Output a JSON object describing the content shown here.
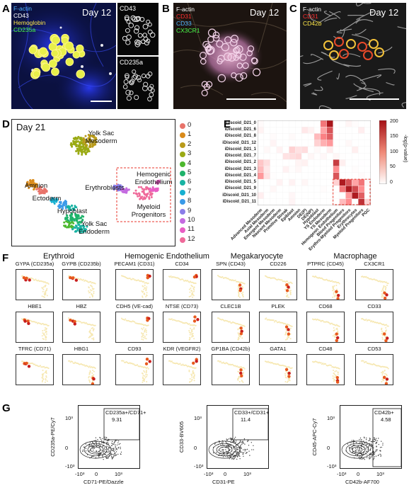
{
  "panel_letters": [
    "A",
    "B",
    "C",
    "D",
    "E",
    "F",
    "G"
  ],
  "panelA": {
    "legend": [
      {
        "text": "F-actin",
        "color": "#4fb3ff"
      },
      {
        "text": "CD43",
        "color": "#ffffff"
      },
      {
        "text": "Hemoglobin",
        "color": "#ffe84a"
      },
      {
        "text": "CD235a",
        "color": "#4cff4c"
      }
    ],
    "day": "Day 12",
    "inset_top": "CD43",
    "inset_bottom": "CD235a"
  },
  "panelB": {
    "legend": [
      {
        "text": "F-actin",
        "color": "#ffffff"
      },
      {
        "text": "CD31",
        "color": "#ff3030"
      },
      {
        "text": "CD33",
        "color": "#4fb3ff"
      },
      {
        "text": "CX3CR1",
        "color": "#4cff4c"
      }
    ],
    "day": "Day 12"
  },
  "panelC": {
    "legend": [
      {
        "text": "F-actin",
        "color": "#ffffff"
      },
      {
        "text": "CD31",
        "color": "#ff3030"
      },
      {
        "text": "CD42b",
        "color": "#ffe84a"
      }
    ],
    "day": "Day 12"
  },
  "panelD": {
    "title": "Day 21",
    "clusters": [
      {
        "id": "0",
        "color": "#e8736a"
      },
      {
        "id": "1",
        "color": "#d98a1a"
      },
      {
        "id": "2",
        "color": "#b89a1a"
      },
      {
        "id": "3",
        "color": "#9aaa14"
      },
      {
        "id": "4",
        "color": "#4db82e"
      },
      {
        "id": "5",
        "color": "#1fb36b"
      },
      {
        "id": "6",
        "color": "#19b3a3"
      },
      {
        "id": "7",
        "color": "#17b0d0"
      },
      {
        "id": "8",
        "color": "#3a9ae8"
      },
      {
        "id": "9",
        "color": "#8a7de8"
      },
      {
        "id": "10",
        "color": "#c46ae0"
      },
      {
        "id": "11",
        "color": "#e85ec4"
      },
      {
        "id": "12",
        "color": "#ef6a9a"
      }
    ],
    "labels": {
      "yolk_sac_mesoderm": "Yolk Sac\nMesoderm",
      "amnion": "Amnion",
      "ectoderm": "Ectoderm",
      "hypoblast": "Hypoblast",
      "yolk_sac_endoderm": "Yolk Sac\nEndoderm",
      "erythroblasts": "Erythroblasts",
      "hemogenic_endothelium": "Hemogenic\nEndothelium",
      "myeloid_progenitors": "Myeloid\nProgenitors"
    }
  },
  "panelE": {
    "rows": [
      "iDiscoid_D21_0",
      "iDiscoid_D21_6",
      "iDiscoid_D21_8",
      "iDiscoid_D21_12",
      "iDiscoid_D21_1",
      "iDiscoid_D21_7",
      "iDiscoid_D21_2",
      "iDiscoid_D21_3",
      "iDiscoid_D21_4",
      "iDiscoid_D21_5",
      "iDiscoid_D21_9",
      "iDiscoid_D21_10",
      "iDiscoid_D21_11"
    ],
    "cols": [
      "Advanced Mesoderm",
      "Axial Mesoderm",
      "Emergent Mesoderm",
      "Nascent Mesoderm",
      "Primitive Streak",
      "Epiblast",
      "Amnion",
      "DE(P)",
      "DE(NP)",
      "Hypoblast",
      "YS Endoderm",
      "YS Mesoderm",
      "Hemogenic Endothelium",
      "Blood Progenitors",
      "Erythro-Myeloid Progenitors",
      "Erythrocytes",
      "Myeloid Progenitors",
      "PGC"
    ],
    "colorbar_label": "-log(p-value)",
    "colorbar_ticks": [
      "200",
      "150",
      "100",
      "50",
      "0"
    ],
    "max_value": 210
  },
  "panelF": {
    "groups": [
      "Erythroid",
      "Hemogenic Endothelium",
      "Megakaryocyte",
      "Macrophage"
    ],
    "rows": [
      [
        "GYPA (CD235a)",
        "GYPB (CD235b)",
        "PECAM1 (CD31)",
        "CD34",
        "SPN (CD43)",
        "CD226",
        "PTPRC (CD45)",
        "CX3CR1"
      ],
      [
        "HBE1",
        "HBZ",
        "CDH5 (VE-cad)",
        "NTSE (CD73)",
        "CLEC1B",
        "PLEK",
        "CD68",
        "CD33"
      ],
      [
        "TFRC (CD71)",
        "HBG1",
        "CD93",
        "KDR (VEGFR2)",
        "GP1BA (CD42b)",
        "GATA1",
        "CD48",
        "CD53"
      ]
    ]
  },
  "panelG": {
    "plots": [
      {
        "gate": "CD235a+/CD71+",
        "pct": "9.31",
        "ylabel": "CD235a-PE/Cy7",
        "xlabel": "CD71-PE/Dazzle"
      },
      {
        "gate": "CD33+/CD31+",
        "pct": "11.4",
        "ylabel": "CD33-BV605",
        "xlabel": "CD31-PE"
      },
      {
        "gate": "CD42b+",
        "pct": "4.58",
        "ylabel": "CD45-APC-Cy7",
        "xlabel": "CD42b-AF700"
      }
    ],
    "ticks": {
      "y_top": "10³",
      "y_mid": "0",
      "y_bot": "-10³",
      "x_left": "-10³",
      "x_mid": "0",
      "x_right": "10³"
    }
  }
}
